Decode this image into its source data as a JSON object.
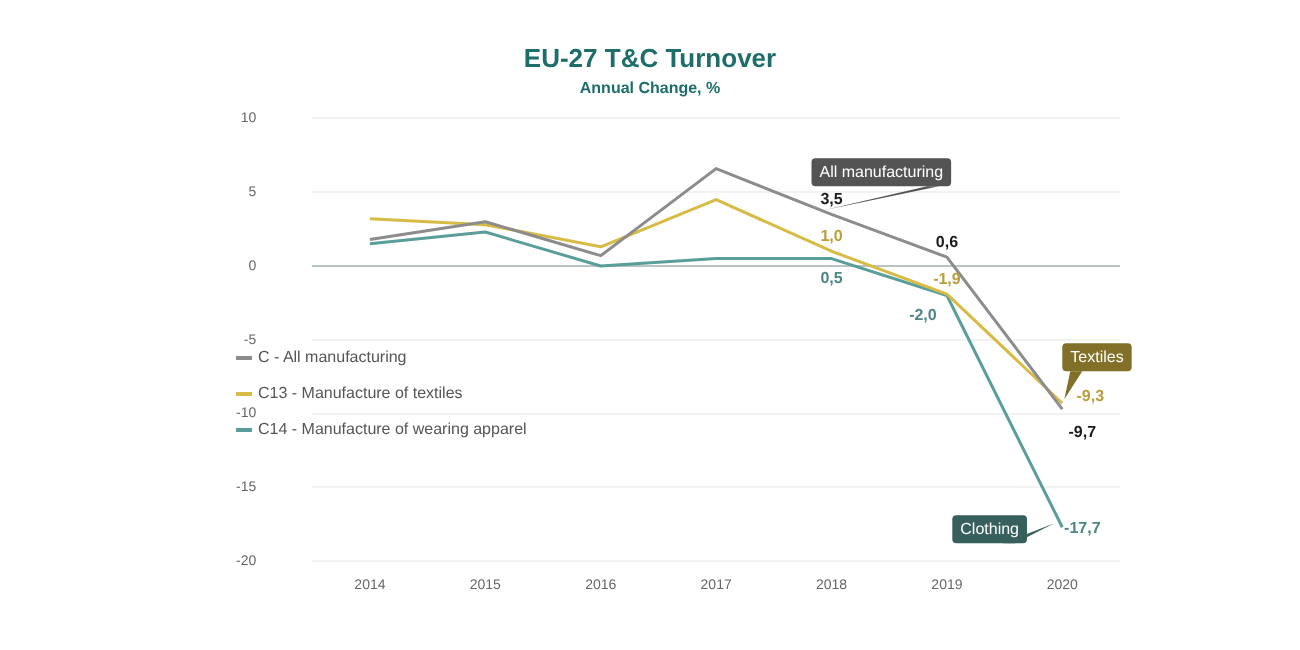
{
  "chart_data": {
    "type": "line",
    "title": "EU-27 T&C Turnover",
    "subtitle": "Annual Change, %",
    "categories": [
      "2014",
      "2015",
      "2016",
      "2017",
      "2018",
      "2019",
      "2020"
    ],
    "series": [
      {
        "name": "C - All manufacturing",
        "color": "#8c8c8c",
        "values": [
          1.8,
          3.0,
          0.7,
          6.6,
          3.5,
          0.6,
          -9.7
        ],
        "value_labels": [
          null,
          null,
          null,
          null,
          "3,5",
          "0,6",
          "-9,7"
        ]
      },
      {
        "name": "C13 - Manufacture of textiles",
        "color": "#d8bb45",
        "values": [
          3.2,
          2.8,
          1.3,
          4.5,
          1.0,
          -1.9,
          -9.3
        ],
        "value_labels": [
          null,
          null,
          null,
          null,
          "1,0",
          "-1,9",
          "-9,3"
        ]
      },
      {
        "name": "C14 - Manufacture of wearing apparel",
        "color": "#5a9e9c",
        "values": [
          1.5,
          2.3,
          0.0,
          0.5,
          0.5,
          -2.0,
          -17.7
        ],
        "value_labels": [
          null,
          null,
          null,
          null,
          "0,5",
          "-2,0",
          "-17,7"
        ]
      }
    ],
    "annotations": [
      {
        "text": "All manufacturing",
        "x": "2018",
        "y": 3.5
      },
      {
        "text": "Textiles",
        "x": "2020",
        "y": -9.3
      },
      {
        "text": "Clothing",
        "x": "2020",
        "y": -17.7
      }
    ],
    "ylim": [
      -20,
      10
    ],
    "yticks": [
      -20,
      -15,
      -10,
      -5,
      0,
      5,
      10
    ],
    "grid": "y",
    "legend": "left",
    "marker": "none",
    "line_style": "solid"
  }
}
